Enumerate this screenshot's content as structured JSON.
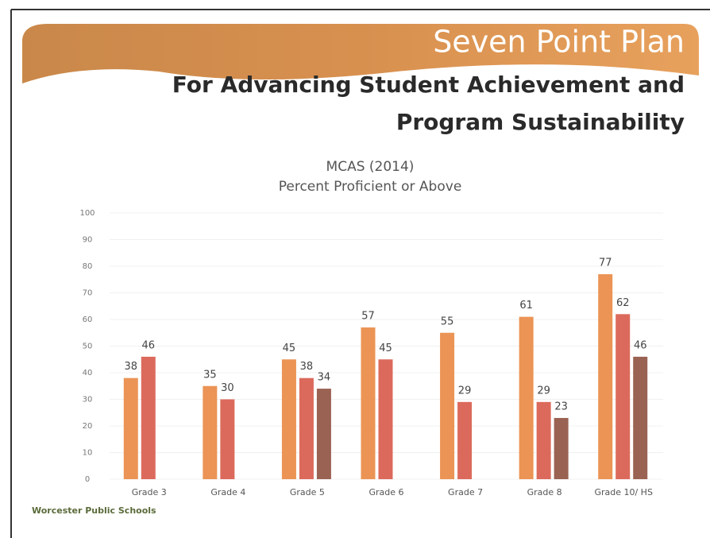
{
  "header": {
    "title": "Seven Point Plan",
    "subtitle": [
      "For Advancing Student Achievement and",
      "Program Sustainability"
    ]
  },
  "footer": "Worcester Public Schools",
  "chart_data": {
    "type": "bar",
    "title": [
      "MCAS (2014)",
      "Percent Proficient or Above"
    ],
    "categories": [
      "Grade 3",
      "Grade 4",
      "Grade 5",
      "Grade 6",
      "Grade 7",
      "Grade 8",
      "Grade 10/ HS"
    ],
    "series": [
      {
        "color": "#eb9455",
        "values": [
          38,
          35,
          45,
          57,
          55,
          61,
          77
        ]
      },
      {
        "color": "#dc6a5c",
        "values": [
          46,
          30,
          38,
          45,
          29,
          29,
          62
        ]
      },
      {
        "color": "#9a6253",
        "values": [
          null,
          null,
          34,
          null,
          null,
          23,
          46
        ]
      }
    ],
    "ylim": [
      0,
      100
    ],
    "yticks": [
      0,
      10,
      20,
      30,
      40,
      50,
      60,
      70,
      80,
      90,
      100
    ],
    "grid": true
  }
}
